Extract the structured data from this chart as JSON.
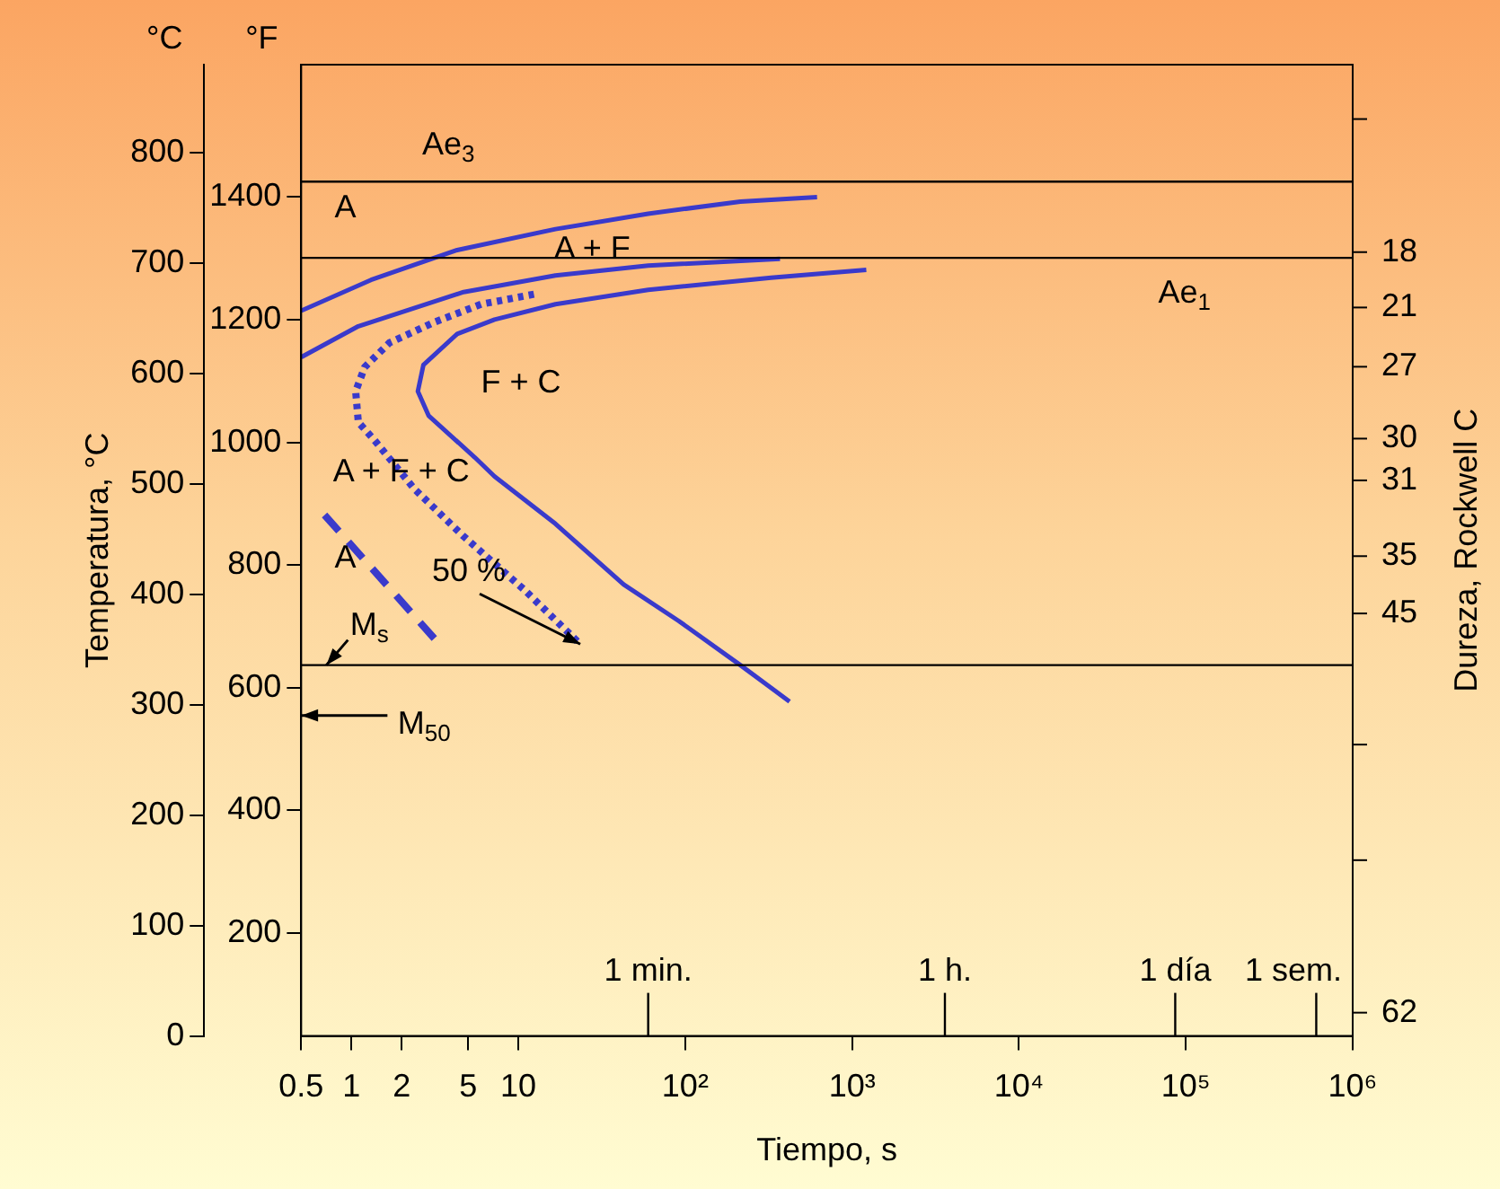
{
  "chart_data": {
    "type": "line",
    "xlabel": "Tiempo, s",
    "ylabel": "Temperatura, °C",
    "y2label": "°F",
    "y3label": "Dureza, Rockwell C",
    "log": "x",
    "grid": false,
    "legend": false,
    "marker": "none",
    "xlim": [
      0.5,
      1000000
    ],
    "xticks": [
      0.5,
      1,
      2,
      5,
      10,
      {
        "value": 100,
        "label": "10²"
      },
      {
        "value": 1000,
        "label": "10³"
      },
      {
        "value": 10000,
        "label": "10⁴"
      },
      {
        "value": 100000,
        "label": "10⁵"
      },
      {
        "value": 1000000,
        "label": "10⁶"
      }
    ],
    "ylim": [
      0,
      880
    ],
    "yticks": [
      0,
      100,
      200,
      300,
      400,
      500,
      600,
      700,
      800
    ],
    "y2lim": [
      32,
      1616
    ],
    "y2ticks": [
      200,
      400,
      600,
      800,
      1000,
      1200,
      1400
    ],
    "series": [
      {
        "type": "line",
        "color": "#3a3acb",
        "line_style": "solid",
        "x": [
          0.5,
          1.31,
          4.3,
          16.7,
          60,
          214,
          617
        ],
        "values": [
          657,
          685,
          712,
          731,
          745,
          756,
          760
        ]
      },
      {
        "type": "line",
        "color": "#3a3acb",
        "line_style": "solid",
        "x": [
          0.5,
          1.1,
          4.7,
          16.7,
          60,
          370
        ],
        "values": [
          615,
          643,
          674,
          689,
          698,
          704
        ]
      },
      {
        "type": "line",
        "color": "#3a3acb",
        "line_style": "solid",
        "x": [
          1217,
          327,
          60,
          16.7,
          7.2,
          4.3,
          2.7,
          2.5,
          2.9,
          5.5,
          7.2,
          16.7,
          42.8,
          91.5,
          214,
          422
        ],
        "values": [
          694,
          687,
          676,
          663,
          649,
          636,
          608,
          584,
          562,
          524,
          507,
          464,
          409,
          376,
          336,
          303
        ]
      },
      {
        "type": "line",
        "color": "#3a3acb",
        "line_style": "dotted",
        "x": [
          12.4,
          6.0,
          3.06,
          1.69,
          1.2,
          1.06,
          1.1,
          1.37,
          2.37,
          4.67,
          10.9,
          23.5
        ],
        "values": [
          672,
          663,
          646,
          628,
          606,
          584,
          556,
          540,
          496,
          453,
          404,
          355
        ]
      },
      {
        "type": "line",
        "color": "#3a3acb",
        "line_style": "dashed",
        "x": [
          0.69,
          3.5
        ],
        "values": [
          472,
          352
        ]
      }
    ],
    "ref_lines": [
      {
        "axis": "y",
        "value": 774,
        "label": "Ae$_{3}$"
      },
      {
        "axis": "y",
        "value": 705,
        "label": "Ae$_{1}$"
      },
      {
        "axis": "y",
        "value": 336,
        "label": "M$_{s}$"
      },
      {
        "axis": "x",
        "value": 60,
        "label": "1 min."
      },
      {
        "axis": "x",
        "value": 3600,
        "label": "1 h."
      },
      {
        "axis": "x",
        "value": 86400,
        "label": "1 día"
      },
      {
        "axis": "x",
        "value": 604800,
        "label": "1 sem."
      }
    ],
    "annotations": [
      "A",
      {
        "text": "A + F",
        "x": 28,
        "y": 712
      },
      "F + C",
      "A + F + C",
      "A",
      {
        "text": "50 %",
        "x": 23.5,
        "y": 355
      },
      "M$_{50}$",
      "°C",
      "18",
      "21",
      "27",
      "30",
      "31",
      "35",
      "45",
      "62"
    ]
  }
}
